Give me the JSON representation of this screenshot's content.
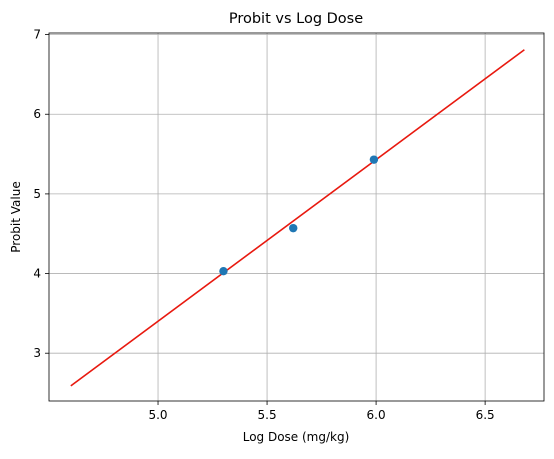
{
  "chart_data": {
    "type": "scatter",
    "title": "Probit vs Log Dose",
    "xlabel": "Log Dose (mg/kg)",
    "ylabel": "Probit Value",
    "xlim": [
      4.5,
      6.77
    ],
    "ylim": [
      2.4,
      7.02
    ],
    "xticks": [
      5.0,
      5.5,
      6.0,
      6.5
    ],
    "xtick_labels": [
      "5.0",
      "5.5",
      "6.0",
      "6.5"
    ],
    "yticks": [
      3,
      4,
      5,
      6,
      7
    ],
    "ytick_labels": [
      "3",
      "4",
      "5",
      "6",
      "7"
    ],
    "grid": true,
    "series": [
      {
        "kind": "scatter",
        "color": "#1f77b4",
        "x": [
          5.3,
          5.62,
          5.99
        ],
        "y": [
          4.03,
          4.57,
          5.43
        ]
      },
      {
        "kind": "line",
        "color": "#e8190f",
        "x": [
          4.6,
          6.68
        ],
        "y": [
          2.59,
          6.81
        ]
      }
    ]
  }
}
